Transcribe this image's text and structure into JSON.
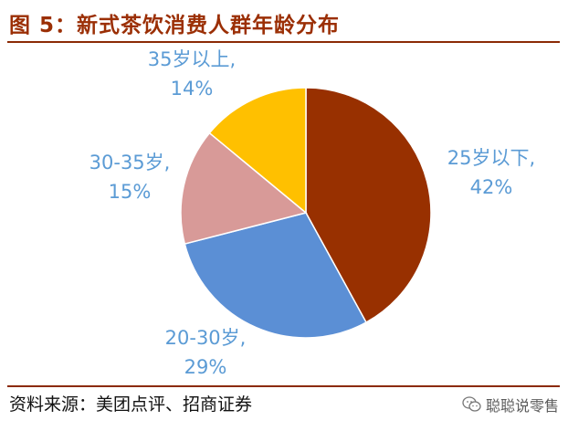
{
  "title": "图 5：新式茶饮消费人群年龄分布",
  "source": "资料来源：美团点评、招商证券",
  "watermark": "聪聪说零售",
  "watermark_icon": "wechat-icon",
  "colors": {
    "title": "#9b2f05",
    "rule": "#8b2a05",
    "label": "#5b9bd5"
  },
  "chart_data": {
    "type": "pie",
    "title": "",
    "slices": [
      {
        "name": "25岁以下",
        "value": 42,
        "color": "#983000",
        "label_line1": "25岁以下,",
        "label_line2": "42%"
      },
      {
        "name": "20-30岁",
        "value": 29,
        "color": "#5b8fd5",
        "label_line1": "20-30岁,",
        "label_line2": "29%"
      },
      {
        "name": "30-35岁",
        "value": 15,
        "color": "#d89a98",
        "label_line1": "30-35岁,",
        "label_line2": "15%"
      },
      {
        "name": "35岁以上",
        "value": 14,
        "color": "#ffc000",
        "label_line1": "35岁以上,",
        "label_line2": "14%"
      }
    ]
  }
}
